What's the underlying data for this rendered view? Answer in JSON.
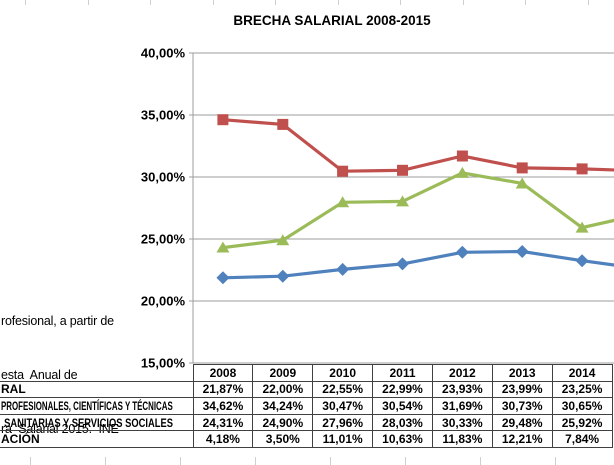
{
  "colors": {
    "series_blue": "#4F81BD",
    "series_red": "#C0504D",
    "series_green": "#9BBB59",
    "grid": "#9C9C9C",
    "table_border": "#404040",
    "sheet_gridline": "#CFCFCF",
    "text": "#000000"
  },
  "chart_data": {
    "type": "line",
    "title": "BRECHA SALARIAL 2008-2015",
    "x": [
      "2008",
      "2009",
      "2010",
      "2011",
      "2012",
      "2013",
      "2014"
    ],
    "x_note": "2015 column cropped off the right edge of the screenshot",
    "y_axis": {
      "min": 15,
      "max": 40,
      "step": 5,
      "tick_labels": [
        "40,00%",
        "35,00%",
        "30,00%",
        "25,00%",
        "20,00%",
        "15,00%"
      ],
      "format": "percent, comma decimal separator"
    },
    "grid": "horizontal gridlines every 5%",
    "legend": "none visible (data table under chart; row labels cropped at left)",
    "series": [
      {
        "name": "RAL",
        "name_note": "label cropped at left edge of image",
        "color": "#4F81BD",
        "marker": "diamond",
        "values": [
          21.87,
          22.0,
          22.55,
          22.99,
          23.93,
          23.99,
          23.25
        ],
        "clipped_exit_value": 22.6
      },
      {
        "name": "PROFESIONALES, CIENTÍFICAS Y TÉCNICAS",
        "name_note": "label cropped at left edge of image",
        "color": "#C0504D",
        "marker": "square",
        "values": [
          34.62,
          34.24,
          30.47,
          30.54,
          31.69,
          30.73,
          30.65
        ],
        "clipped_exit_value": 30.5
      },
      {
        "name": "SANITARIAS Y SERVICIOS SOCIALES",
        "name_note": "label cropped at left edge of image",
        "color": "#9BBB59",
        "marker": "triangle",
        "values": [
          24.31,
          24.9,
          27.96,
          28.03,
          30.33,
          29.48,
          25.92
        ],
        "clipped_exit_value": 27.0
      },
      {
        "name": "ACIÓN",
        "name_note": "label cropped at left edge of image",
        "color": null,
        "marker": "none",
        "values": [
          4.18,
          3.5,
          11.01,
          10.63,
          11.83,
          12.21,
          7.84
        ],
        "visible_in_plot": false,
        "visibility_note": "values lie below the 15% axis minimum, line not drawn in plot"
      }
    ]
  },
  "table": {
    "header_years": [
      "2008",
      "2009",
      "2010",
      "2011",
      "2012",
      "2013",
      "2014"
    ],
    "rows": [
      {
        "label": "RAL",
        "values": [
          "21,87%",
          "22,00%",
          "22,55%",
          "22,99%",
          "23,93%",
          "23,99%",
          "23,25%"
        ]
      },
      {
        "label": "PROFESIONALES, CIENTÍFICAS Y TÉCNICAS",
        "values": [
          "34,62%",
          "34,24%",
          "30,47%",
          "30,54%",
          "31,69%",
          "30,73%",
          "30,65%"
        ]
      },
      {
        "label": "SANITARIAS Y SERVICIOS SOCIALES",
        "values": [
          "24,31%",
          "24,90%",
          "27,96%",
          "28,03%",
          "30,33%",
          "29,48%",
          "25,92%"
        ]
      },
      {
        "label": "ACIÓN",
        "values": [
          "4,18%",
          "3,50%",
          "11,01%",
          "10,63%",
          "11,83%",
          "12,21%",
          "7,84%"
        ]
      }
    ]
  },
  "note": {
    "lines": [
      "rofesional, a partir de",
      "esta  Anual de",
      "ra  Salarial 2015.  INE"
    ]
  }
}
